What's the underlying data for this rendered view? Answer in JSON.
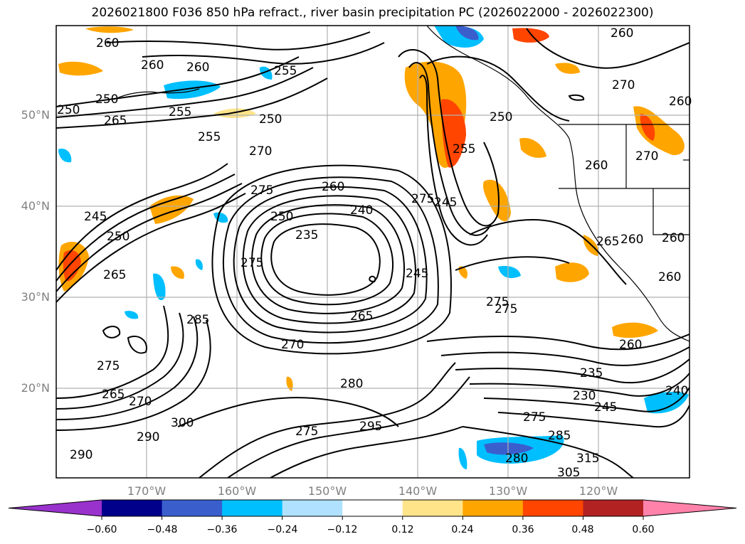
{
  "title": "2026021800 F036 850 hPa refract., river basin precipitation PC (2026022000 - 2026022300)",
  "lat_labels": [
    "50°N",
    "40°N",
    "30°N",
    "20°N"
  ],
  "lon_labels": [
    "170°W",
    "160°W",
    "150°W",
    "140°W",
    "130°W",
    "120°W"
  ],
  "contour_labels": [
    "260",
    "260",
    "260",
    "260",
    "255",
    "250",
    "255",
    "250",
    "255",
    "265",
    "270",
    "275",
    "260",
    "240",
    "250",
    "235",
    "245",
    "275",
    "275",
    "265",
    "270",
    "285",
    "280",
    "295",
    "300",
    "290",
    "275",
    "275",
    "265",
    "290",
    "270",
    "245",
    "250",
    "265",
    "250",
    "245",
    "255",
    "250",
    "260",
    "265",
    "260",
    "275",
    "275",
    "230",
    "235",
    "245",
    "260",
    "240",
    "285",
    "275",
    "280",
    "305",
    "315",
    "270",
    "260",
    "260",
    "260",
    "270"
  ],
  "colorbar": {
    "ticks": [
      "−0.60",
      "−0.48",
      "−0.36",
      "−0.24",
      "−0.12",
      "0.12",
      "0.24",
      "0.36",
      "0.48",
      "0.60"
    ],
    "colors": [
      "#9932cc",
      "#00008b",
      "#3a5fcd",
      "#00bfff",
      "#b0e2ff",
      "#ffffff",
      "#ffe48a",
      "#ffa500",
      "#ff4500",
      "#b22222",
      "#ff82ab"
    ]
  },
  "precip_colors": {
    "pos_light": "#ffe48a",
    "pos_mid": "#ffa500",
    "pos_high": "#ff4500",
    "neg_light": "#b0e2ff",
    "neg_mid": "#00bfff",
    "neg_high": "#3a5fcd"
  }
}
